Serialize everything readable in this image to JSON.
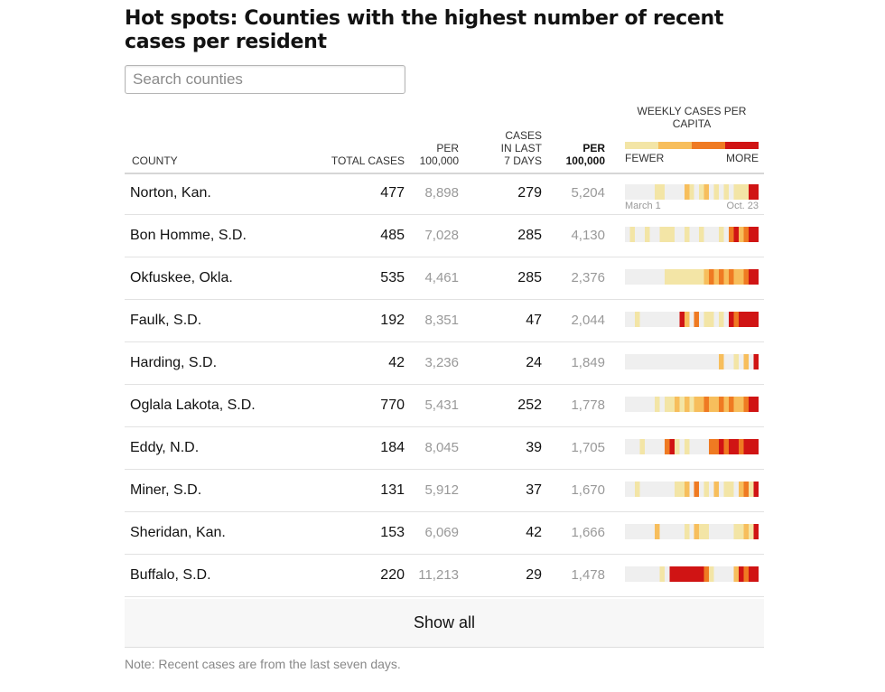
{
  "title": "Hot spots: Counties with the highest number of recent cases per resident",
  "search": {
    "placeholder": "Search counties"
  },
  "columns": {
    "county": "COUNTY",
    "total_cases": "TOTAL CASES",
    "per_100k_line1": "PER",
    "per_100k_line2": "100,000",
    "last7_line1": "CASES",
    "last7_line2": "IN LAST",
    "last7_line3": "7 DAYS",
    "per2_line1": "PER",
    "per2_line2": "100,000"
  },
  "legend": {
    "title_line1": "WEEKLY CASES PER",
    "title_line2": "CAPITA",
    "fewer": "FEWER",
    "more": "MORE",
    "scale_colors": [
      "#f3e5a6",
      "#f7be5c",
      "#ef7a22",
      "#d01414"
    ]
  },
  "axis": {
    "start": "March 1",
    "end": "Oct. 23"
  },
  "level_colors": [
    "#efefef",
    "#f3e5a6",
    "#f7be5c",
    "#ef7a22",
    "#d01414"
  ],
  "rows": [
    {
      "county": "Norton, Kan.",
      "total": "477",
      "per100k": "8,898",
      "last7": "279",
      "last7_per100k": "5,204",
      "weekly": [
        0,
        0,
        0,
        0,
        0,
        0,
        1,
        1,
        0,
        0,
        0,
        0,
        2,
        1,
        0,
        1,
        2,
        0,
        1,
        0,
        1,
        0,
        1,
        1,
        1,
        4,
        4
      ]
    },
    {
      "county": "Bon Homme, S.D.",
      "total": "485",
      "per100k": "7,028",
      "last7": "285",
      "last7_per100k": "4,130",
      "weekly": [
        0,
        1,
        0,
        0,
        1,
        0,
        0,
        1,
        1,
        1,
        0,
        0,
        1,
        0,
        0,
        1,
        0,
        0,
        0,
        1,
        0,
        3,
        4,
        2,
        3,
        4,
        4
      ]
    },
    {
      "county": "Okfuskee, Okla.",
      "total": "535",
      "per100k": "4,461",
      "last7": "285",
      "last7_per100k": "2,376",
      "weekly": [
        0,
        0,
        0,
        0,
        0,
        0,
        0,
        0,
        1,
        1,
        1,
        1,
        1,
        1,
        1,
        1,
        2,
        3,
        2,
        3,
        2,
        3,
        2,
        2,
        3,
        4,
        4
      ]
    },
    {
      "county": "Faulk, S.D.",
      "total": "192",
      "per100k": "8,351",
      "last7": "47",
      "last7_per100k": "2,044",
      "weekly": [
        0,
        0,
        1,
        0,
        0,
        0,
        0,
        0,
        0,
        0,
        0,
        4,
        2,
        0,
        3,
        0,
        1,
        1,
        0,
        1,
        0,
        4,
        3,
        4,
        4,
        4,
        4
      ]
    },
    {
      "county": "Harding, S.D.",
      "total": "42",
      "per100k": "3,236",
      "last7": "24",
      "last7_per100k": "1,849",
      "weekly": [
        0,
        0,
        0,
        0,
        0,
        0,
        0,
        0,
        0,
        0,
        0,
        0,
        0,
        0,
        0,
        0,
        0,
        0,
        0,
        2,
        0,
        0,
        1,
        0,
        2,
        0,
        4
      ]
    },
    {
      "county": "Oglala Lakota, S.D.",
      "total": "770",
      "per100k": "5,431",
      "last7": "252",
      "last7_per100k": "1,778",
      "weekly": [
        0,
        0,
        0,
        0,
        0,
        0,
        1,
        0,
        1,
        1,
        2,
        1,
        2,
        1,
        2,
        2,
        3,
        2,
        2,
        3,
        2,
        3,
        2,
        2,
        3,
        4,
        4
      ]
    },
    {
      "county": "Eddy, N.D.",
      "total": "184",
      "per100k": "8,045",
      "last7": "39",
      "last7_per100k": "1,705",
      "weekly": [
        0,
        0,
        0,
        1,
        0,
        0,
        0,
        0,
        3,
        4,
        1,
        0,
        1,
        0,
        0,
        0,
        0,
        3,
        3,
        4,
        3,
        4,
        4,
        3,
        4,
        4,
        4
      ]
    },
    {
      "county": "Miner, S.D.",
      "total": "131",
      "per100k": "5,912",
      "last7": "37",
      "last7_per100k": "1,670",
      "weekly": [
        0,
        0,
        1,
        0,
        0,
        0,
        0,
        0,
        0,
        0,
        1,
        1,
        2,
        0,
        3,
        0,
        1,
        0,
        2,
        0,
        1,
        1,
        0,
        2,
        3,
        1,
        4
      ]
    },
    {
      "county": "Sheridan, Kan.",
      "total": "153",
      "per100k": "6,069",
      "last7": "42",
      "last7_per100k": "1,666",
      "weekly": [
        0,
        0,
        0,
        0,
        0,
        0,
        2,
        0,
        0,
        0,
        0,
        0,
        1,
        0,
        2,
        1,
        1,
        0,
        0,
        0,
        0,
        0,
        1,
        1,
        2,
        1,
        4
      ]
    },
    {
      "county": "Buffalo, S.D.",
      "total": "220",
      "per100k": "11,213",
      "last7": "29",
      "last7_per100k": "1,478",
      "weekly": [
        0,
        0,
        0,
        0,
        0,
        0,
        0,
        1,
        0,
        4,
        4,
        4,
        4,
        4,
        4,
        4,
        3,
        1,
        0,
        0,
        0,
        0,
        2,
        4,
        3,
        4,
        4
      ]
    }
  ],
  "show_all": "Show all",
  "note": "Note: Recent cases are from the last seven days."
}
